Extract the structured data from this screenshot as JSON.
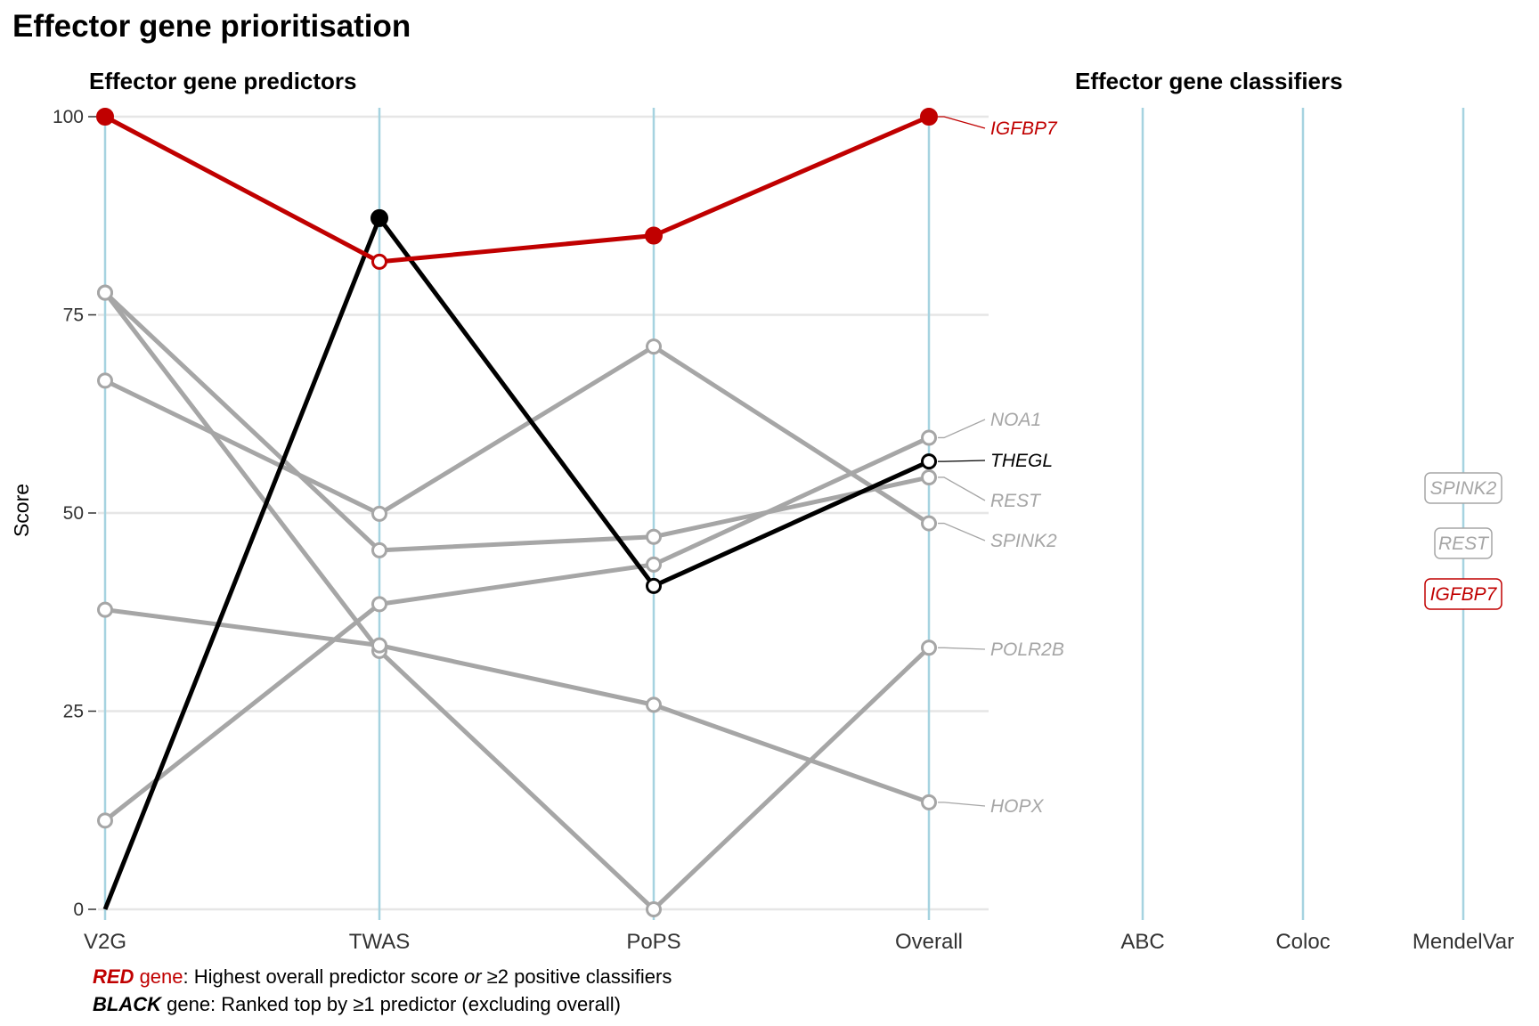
{
  "title": "Effector gene prioritisation",
  "panels": {
    "predictors_title": "Effector gene predictors",
    "classifiers_title": "Effector gene classifiers"
  },
  "colors": {
    "red": "#c00000",
    "black": "#000000",
    "grey": "#a6a6a6",
    "axis_line": "#a6d3e0",
    "grid": "#e6e6e6"
  },
  "chart_data": [
    {
      "type": "line",
      "title": "Effector gene predictors",
      "xlabel": "",
      "ylabel": "Score",
      "categories": [
        "V2G",
        "TWAS",
        "PoPS",
        "Overall"
      ],
      "ylim": [
        0,
        100
      ],
      "yticks": [
        0,
        25,
        50,
        75,
        100
      ],
      "grid": true,
      "series": [
        {
          "name": "IGFBP7",
          "group": "red",
          "values": [
            100,
            81.7,
            85,
            100
          ],
          "filled": [
            true,
            false,
            true,
            true
          ]
        },
        {
          "name": "THEGL",
          "group": "black",
          "values": [
            0,
            87.2,
            40.8,
            56.5
          ],
          "filled": [
            true,
            true,
            false,
            false
          ]
        },
        {
          "name": "NOA1",
          "group": "grey",
          "values": [
            11.2,
            38.5,
            43.5,
            59.5
          ],
          "filled": [
            false,
            false,
            false,
            false
          ]
        },
        {
          "name": "REST",
          "group": "grey",
          "values": [
            77.8,
            45.3,
            47,
            54.5
          ],
          "filled": [
            false,
            false,
            false,
            false
          ]
        },
        {
          "name": "SPINK2",
          "group": "grey",
          "values": [
            66.7,
            49.9,
            71,
            48.7
          ],
          "filled": [
            false,
            false,
            false,
            false
          ]
        },
        {
          "name": "POLR2B",
          "group": "grey",
          "values": [
            77.8,
            32.6,
            0,
            33
          ],
          "filled": [
            false,
            false,
            false,
            false
          ]
        },
        {
          "name": "HOPX",
          "group": "grey",
          "values": [
            37.8,
            33.3,
            25.8,
            13.5
          ],
          "filled": [
            false,
            false,
            false,
            false
          ]
        }
      ]
    },
    {
      "type": "table",
      "title": "Effector gene classifiers",
      "categories": [
        "ABC",
        "Coloc",
        "MendelVar"
      ],
      "entries": [
        {
          "column": "MendelVar",
          "gene": "SPINK2",
          "group": "grey"
        },
        {
          "column": "MendelVar",
          "gene": "REST",
          "group": "grey"
        },
        {
          "column": "MendelVar",
          "gene": "IGFBP7",
          "group": "red"
        }
      ]
    }
  ],
  "footnotes": {
    "line1": {
      "strong": "RED",
      "colored": " gene",
      "rest_a": ": Highest overall predictor score ",
      "italic": "or",
      "rest_b": " ≥2 positive classifiers"
    },
    "line2": {
      "strong": "BLACK",
      "rest": " gene: Ranked top by ≥1 predictor (excluding overall)"
    }
  }
}
